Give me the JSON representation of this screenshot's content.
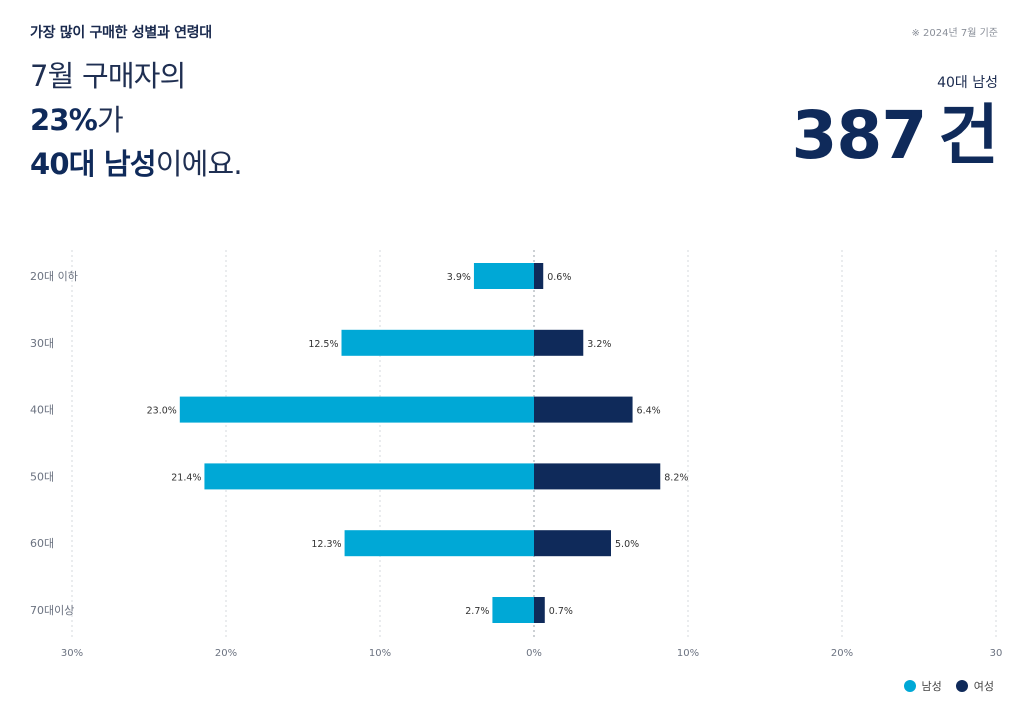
{
  "header": {
    "section_title": "가장 많이 구매한 성별과 연령대",
    "basis": "※ 2024년 7월 기준",
    "headline_line1": "7월 구매자의",
    "headline_pct": "23%",
    "headline_pct_suffix": "가",
    "headline_group": "40대 남성",
    "headline_suffix": "이에요.",
    "kpi_label": "40대 남성",
    "kpi_value": "387",
    "kpi_unit": "건"
  },
  "legend": {
    "male": "남성",
    "female": "여성"
  },
  "colors": {
    "male": "#00a8d6",
    "female": "#0f2a5a"
  },
  "chart_data": {
    "type": "bar",
    "orientation": "horizontal-diverging",
    "categories": [
      "20대 이하",
      "30대",
      "40대",
      "50대",
      "60대",
      "70대이상"
    ],
    "series": [
      {
        "name": "남성",
        "values": [
          3.9,
          12.5,
          23.0,
          21.4,
          12.3,
          2.7
        ],
        "labels": [
          "3.9%",
          "12.5%",
          "23.0%",
          "21.4%",
          "12.3%",
          "2.7%"
        ]
      },
      {
        "name": "여성",
        "values": [
          0.6,
          3.2,
          6.4,
          8.2,
          5.0,
          0.7
        ],
        "labels": [
          "0.6%",
          "3.2%",
          "6.4%",
          "8.2%",
          "5.0%",
          "0.7%"
        ]
      }
    ],
    "xlim": [
      -30,
      30
    ],
    "ticks": [
      -30,
      -20,
      -10,
      0,
      10,
      20,
      30
    ],
    "tick_labels": [
      "30%",
      "20%",
      "10%",
      "0%",
      "10%",
      "20%",
      "30"
    ],
    "grid": true,
    "legend_position": "bottom-right"
  }
}
